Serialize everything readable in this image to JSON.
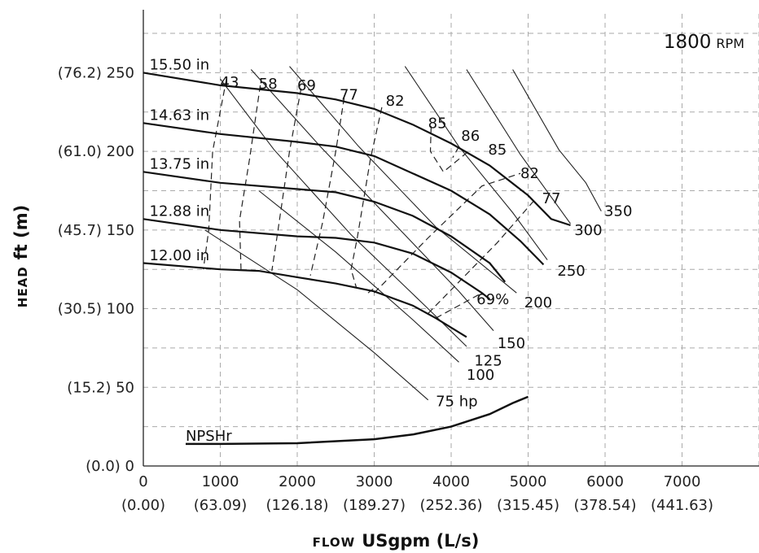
{
  "chart_data": {
    "type": "line",
    "speed": "1800",
    "speed_unit": "RPM",
    "xlabel_word": "FLOW",
    "xlabel_units": "USgpm (L/s)",
    "ylabel_word": "HEAD",
    "ylabel_units": "ft (m)",
    "xlim": [
      0,
      8000
    ],
    "ylim": [
      0,
      290
    ],
    "grid": true,
    "x_ticks": [
      {
        "v": 0,
        "label": "0",
        "sub": "(0.00)"
      },
      {
        "v": 1000,
        "label": "1000",
        "sub": "(63.09)"
      },
      {
        "v": 2000,
        "label": "2000",
        "sub": "(126.18)"
      },
      {
        "v": 3000,
        "label": "3000",
        "sub": "(189.27)"
      },
      {
        "v": 4000,
        "label": "4000",
        "sub": "(252.36)"
      },
      {
        "v": 5000,
        "label": "5000",
        "sub": "(315.45)"
      },
      {
        "v": 6000,
        "label": "6000",
        "sub": "(378.54)"
      },
      {
        "v": 7000,
        "label": "7000",
        "sub": "(441.63)"
      }
    ],
    "y_ticks": [
      {
        "v": 0,
        "label": "(0.0) 0"
      },
      {
        "v": 50,
        "label": "(15.2) 50"
      },
      {
        "v": 100,
        "label": "(30.5) 100"
      },
      {
        "v": 150,
        "label": "(45.7) 150"
      },
      {
        "v": 200,
        "label": "(61.0) 200"
      },
      {
        "v": 250,
        "label": "(76.2) 250"
      }
    ],
    "impeller_curves": [
      {
        "name": "15.50 in",
        "points": [
          [
            0,
            250
          ],
          [
            1000,
            242
          ],
          [
            2000,
            237
          ],
          [
            2500,
            233
          ],
          [
            3000,
            227
          ],
          [
            3500,
            217
          ],
          [
            4000,
            205
          ],
          [
            4500,
            191
          ],
          [
            5000,
            172
          ],
          [
            5300,
            157
          ],
          [
            5550,
            153
          ]
        ]
      },
      {
        "name": "14.63 in",
        "points": [
          [
            0,
            218
          ],
          [
            1000,
            211
          ],
          [
            2000,
            206
          ],
          [
            2500,
            203
          ],
          [
            3000,
            197
          ],
          [
            3500,
            186
          ],
          [
            4000,
            175
          ],
          [
            4500,
            160
          ],
          [
            4900,
            143
          ],
          [
            5200,
            128
          ]
        ]
      },
      {
        "name": "13.75 in",
        "points": [
          [
            0,
            187
          ],
          [
            1000,
            180
          ],
          [
            2000,
            176
          ],
          [
            2500,
            174
          ],
          [
            3000,
            168
          ],
          [
            3500,
            159
          ],
          [
            4000,
            146
          ],
          [
            4500,
            129
          ],
          [
            4700,
            117
          ]
        ]
      },
      {
        "name": "12.88 in",
        "points": [
          [
            0,
            157
          ],
          [
            1000,
            150
          ],
          [
            2000,
            146
          ],
          [
            2500,
            145
          ],
          [
            3000,
            142
          ],
          [
            3500,
            135
          ],
          [
            4000,
            123
          ],
          [
            4400,
            110
          ],
          [
            4500,
            106
          ]
        ]
      },
      {
        "name": "12.00 in",
        "points": [
          [
            0,
            129
          ],
          [
            1000,
            125
          ],
          [
            1500,
            124
          ],
          [
            2000,
            120
          ],
          [
            2500,
            116
          ],
          [
            3000,
            111
          ],
          [
            3500,
            102
          ],
          [
            3800,
            94
          ],
          [
            4200,
            82
          ]
        ]
      }
    ],
    "power_curves": [
      {
        "name": "75 hp",
        "label_at": [
          3800,
          41
        ],
        "points": [
          [
            800,
            150
          ],
          [
            2000,
            112
          ],
          [
            3000,
            72
          ],
          [
            3700,
            42
          ]
        ]
      },
      {
        "name": "100",
        "label_at": [
          4200,
          58
        ],
        "points": [
          [
            1500,
            175
          ],
          [
            2500,
            136
          ],
          [
            3500,
            93
          ],
          [
            4100,
            66
          ]
        ]
      },
      {
        "name": "125",
        "label_at": [
          4300,
          67
        ],
        "points": [
          [
            1000,
            246
          ],
          [
            1700,
            201
          ],
          [
            2700,
            147
          ],
          [
            3700,
            100
          ],
          [
            4200,
            76
          ]
        ]
      },
      {
        "name": "150",
        "label_at": [
          4600,
          78
        ],
        "points": [
          [
            1400,
            252
          ],
          [
            2300,
            203
          ],
          [
            3300,
            152
          ],
          [
            4100,
            111
          ],
          [
            4550,
            86
          ]
        ]
      },
      {
        "name": "200",
        "label_at": [
          4950,
          104
        ],
        "points": [
          [
            1900,
            254
          ],
          [
            2800,
            203
          ],
          [
            3800,
            152
          ],
          [
            4500,
            124
          ],
          [
            4850,
            110
          ]
        ]
      },
      {
        "name": "250",
        "label_at": [
          5380,
          124
        ],
        "points": [
          [
            3400,
            254
          ],
          [
            4100,
            203
          ],
          [
            4800,
            161
          ],
          [
            5250,
            131
          ]
        ]
      },
      {
        "name": "300",
        "label_at": [
          5600,
          150
        ],
        "points": [
          [
            4200,
            252
          ],
          [
            4900,
            198
          ],
          [
            5300,
            171
          ],
          [
            5550,
            154
          ]
        ]
      },
      {
        "name": "350",
        "label_at": [
          5990,
          162
        ],
        "points": [
          [
            4800,
            252
          ],
          [
            5400,
            201
          ],
          [
            5750,
            180
          ],
          [
            5950,
            162
          ]
        ]
      }
    ],
    "efficiency_curves": [
      {
        "name": "43",
        "label_at": [
          1000,
          244
        ],
        "points": [
          [
            1080,
            246
          ],
          [
            900,
            200
          ],
          [
            850,
            150
          ],
          [
            780,
            125
          ]
        ]
      },
      {
        "name": "58",
        "label_at": [
          1500,
          243
        ],
        "points": [
          [
            1520,
            242
          ],
          [
            1380,
            195
          ],
          [
            1250,
            156
          ],
          [
            1270,
            124
          ]
        ]
      },
      {
        "name": "69",
        "label_at": [
          2000,
          242
        ],
        "points": [
          [
            2050,
            240
          ],
          [
            1900,
            200
          ],
          [
            1750,
            150
          ],
          [
            1670,
            124
          ]
        ]
      },
      {
        "name": "77",
        "label_at": [
          2550,
          236
        ],
        "points": [
          [
            2610,
            234
          ],
          [
            2500,
            200
          ],
          [
            2330,
            155
          ],
          [
            2170,
            121
          ]
        ]
      },
      {
        "name": "82",
        "label_at": [
          3150,
          232
        ],
        "points": [
          [
            3100,
            228
          ],
          [
            2950,
            195
          ],
          [
            2780,
            145
          ],
          [
            2700,
            125
          ],
          [
            2770,
            113
          ]
        ]
      },
      {
        "name": "85",
        "label_at": [
          3700,
          218
        ],
        "points": [
          [
            3740,
            216
          ],
          [
            3730,
            200
          ],
          [
            3900,
            187
          ],
          [
            4200,
            199
          ]
        ]
      },
      {
        "name": "86",
        "label_at": [
          4130,
          210
        ],
        "points": [
          [
            4100,
            203
          ],
          [
            4020,
            196
          ]
        ]
      },
      {
        "name": "85",
        "label_at": [
          4480,
          201
        ],
        "points": [
          [
            2920,
            110
          ],
          [
            3000,
            113
          ]
        ]
      },
      {
        "name": "82",
        "label_at": [
          4900,
          186
        ],
        "points": [
          [
            3000,
            110
          ],
          [
            3700,
            145
          ],
          [
            4400,
            178
          ],
          [
            4900,
            186
          ]
        ]
      },
      {
        "name": "77",
        "label_at": [
          5180,
          170
        ],
        "points": [
          [
            3700,
            97
          ],
          [
            4600,
            142
          ],
          [
            5100,
            170
          ]
        ]
      },
      {
        "name": "69%",
        "label_at": [
          4330,
          106
        ],
        "points": [
          [
            3800,
            94
          ],
          [
            4400,
            110
          ]
        ]
      }
    ],
    "npshr_curve": {
      "name": "NPSHr",
      "label_at": [
        550,
        19
      ],
      "points": [
        [
          550,
          14
        ],
        [
          1000,
          14
        ],
        [
          2000,
          14.5
        ],
        [
          3000,
          17
        ],
        [
          3500,
          20
        ],
        [
          4000,
          25
        ],
        [
          4500,
          33
        ],
        [
          4800,
          40
        ],
        [
          5000,
          44
        ]
      ]
    }
  }
}
